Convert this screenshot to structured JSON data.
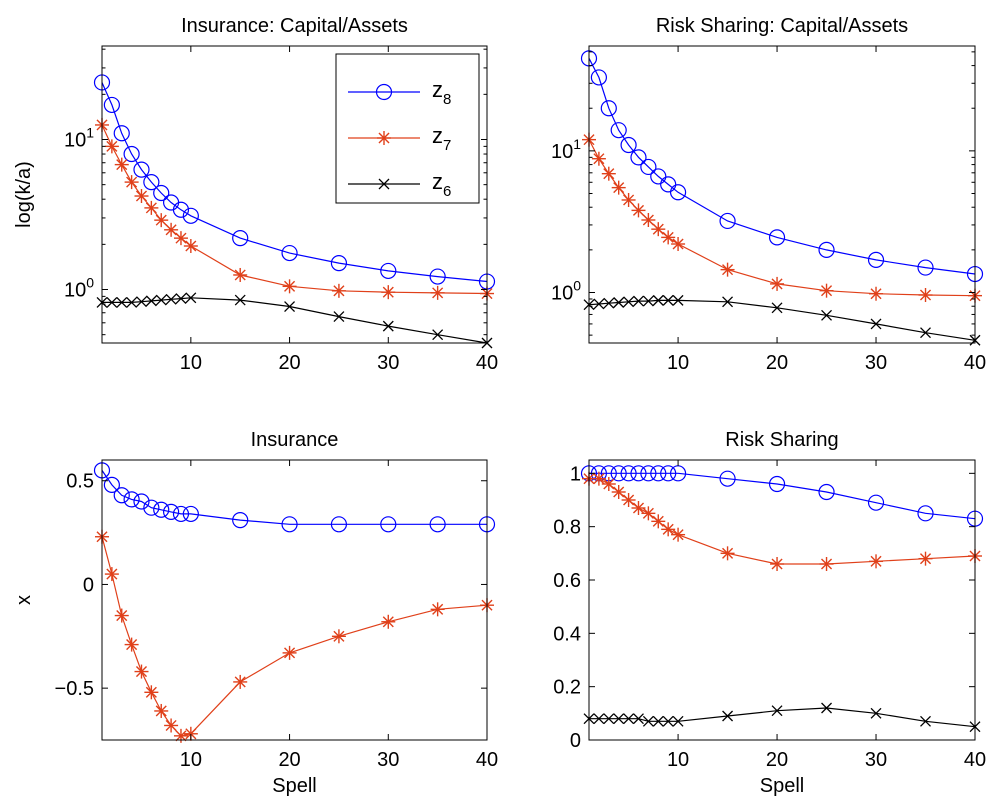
{
  "colors": {
    "z8": "#0000ff",
    "z7": "#e0401a",
    "z6": "#000000"
  },
  "legend": {
    "entries": [
      {
        "series": "z8",
        "base": "z",
        "sub": "8",
        "marker": "circle"
      },
      {
        "series": "z7",
        "base": "z",
        "sub": "7",
        "marker": "asterisk"
      },
      {
        "series": "z6",
        "base": "z",
        "sub": "6",
        "marker": "x"
      }
    ]
  },
  "chart_data": [
    {
      "id": "ins-ka",
      "type": "line",
      "title": "Insurance: Capital/Assets",
      "xlabel": "",
      "ylabel": "log(k/a)",
      "yscale": "log",
      "xlim": [
        1,
        40
      ],
      "ylim": [
        0.44,
        42
      ],
      "xticks": [
        10,
        20,
        30,
        40
      ],
      "yticks": [
        {
          "v": 1,
          "base": "10",
          "exp": "0"
        },
        {
          "v": 10,
          "base": "10",
          "exp": "1"
        }
      ],
      "legend": "top-right",
      "x": [
        1,
        2,
        3,
        4,
        5,
        6,
        7,
        8,
        9,
        10,
        15,
        20,
        25,
        30,
        35,
        40
      ],
      "series": [
        {
          "key": "z8",
          "marker": "circle",
          "values": [
            24,
            17,
            11,
            8,
            6.3,
            5.2,
            4.4,
            3.8,
            3.4,
            3.1,
            2.2,
            1.75,
            1.5,
            1.33,
            1.22,
            1.13
          ]
        },
        {
          "key": "z7",
          "marker": "asterisk",
          "values": [
            12.5,
            9,
            6.8,
            5.2,
            4.2,
            3.5,
            2.9,
            2.5,
            2.2,
            1.95,
            1.25,
            1.05,
            0.98,
            0.96,
            0.95,
            0.94
          ]
        },
        {
          "key": "z6",
          "marker": "x",
          "values": [
            0.82,
            0.82,
            0.82,
            0.82,
            0.83,
            0.84,
            0.85,
            0.86,
            0.87,
            0.88,
            0.85,
            0.77,
            0.66,
            0.57,
            0.5,
            0.44
          ]
        }
      ]
    },
    {
      "id": "rs-ka",
      "type": "line",
      "title": "Risk Sharing: Capital/Assets",
      "xlabel": "",
      "ylabel": "",
      "yscale": "log",
      "xlim": [
        1,
        40
      ],
      "ylim": [
        0.44,
        55
      ],
      "xticks": [
        10,
        20,
        30,
        40
      ],
      "yticks": [
        {
          "v": 1,
          "base": "10",
          "exp": "0"
        },
        {
          "v": 10,
          "base": "10",
          "exp": "1"
        }
      ],
      "x": [
        1,
        2,
        3,
        4,
        5,
        6,
        7,
        8,
        9,
        10,
        15,
        20,
        25,
        30,
        35,
        40
      ],
      "series": [
        {
          "key": "z8",
          "marker": "circle",
          "values": [
            45,
            33,
            20,
            14,
            11,
            9,
            7.7,
            6.6,
            5.8,
            5.1,
            3.2,
            2.45,
            2,
            1.7,
            1.5,
            1.35
          ]
        },
        {
          "key": "z7",
          "marker": "asterisk",
          "values": [
            12,
            8.8,
            6.9,
            5.5,
            4.5,
            3.8,
            3.25,
            2.8,
            2.45,
            2.2,
            1.45,
            1.15,
            1.03,
            0.98,
            0.96,
            0.95
          ]
        },
        {
          "key": "z6",
          "marker": "x",
          "values": [
            0.82,
            0.83,
            0.84,
            0.85,
            0.86,
            0.87,
            0.87,
            0.88,
            0.88,
            0.88,
            0.86,
            0.78,
            0.69,
            0.6,
            0.52,
            0.46
          ]
        }
      ]
    },
    {
      "id": "ins-x",
      "type": "line",
      "title": "Insurance",
      "xlabel": "Spell",
      "ylabel": "x",
      "yscale": "linear",
      "xlim": [
        1,
        40
      ],
      "ylim": [
        -0.75,
        0.6
      ],
      "xticks": [
        10,
        20,
        30,
        40
      ],
      "yticks": [
        {
          "v": 0.5,
          "label": "0.5"
        },
        {
          "v": 0,
          "label": "0"
        },
        {
          "v": -0.5,
          "label": "−0.5"
        }
      ],
      "x": [
        1,
        2,
        3,
        4,
        5,
        6,
        7,
        8,
        9,
        10,
        15,
        20,
        25,
        30,
        35,
        40
      ],
      "series": [
        {
          "key": "z8",
          "marker": "circle",
          "values": [
            0.55,
            0.48,
            0.43,
            0.41,
            0.4,
            0.37,
            0.36,
            0.35,
            0.34,
            0.34,
            0.31,
            0.29,
            0.29,
            0.29,
            0.29,
            0.29
          ]
        },
        {
          "key": "z7",
          "marker": "asterisk",
          "values": [
            0.23,
            0.05,
            -0.15,
            -0.29,
            -0.42,
            -0.52,
            -0.61,
            -0.68,
            -0.73,
            -0.72,
            -0.47,
            -0.33,
            -0.25,
            -0.18,
            -0.12,
            -0.1
          ]
        }
      ]
    },
    {
      "id": "rs-x",
      "type": "line",
      "title": "Risk Sharing",
      "xlabel": "Spell",
      "ylabel": "",
      "yscale": "linear",
      "xlim": [
        1,
        40
      ],
      "ylim": [
        0,
        1.05
      ],
      "xticks": [
        10,
        20,
        30,
        40
      ],
      "yticks": [
        {
          "v": 0,
          "label": "0"
        },
        {
          "v": 0.2,
          "label": "0.2"
        },
        {
          "v": 0.4,
          "label": "0.4"
        },
        {
          "v": 0.6,
          "label": "0.6"
        },
        {
          "v": 0.8,
          "label": "0.8"
        },
        {
          "v": 1,
          "label": "1"
        }
      ],
      "x": [
        1,
        2,
        3,
        4,
        5,
        6,
        7,
        8,
        9,
        10,
        15,
        20,
        25,
        30,
        35,
        40
      ],
      "series": [
        {
          "key": "z8",
          "marker": "circle",
          "values": [
            1,
            1,
            1,
            1,
            1,
            1,
            1,
            1,
            1,
            1,
            0.98,
            0.96,
            0.93,
            0.89,
            0.85,
            0.83
          ]
        },
        {
          "key": "z7",
          "marker": "asterisk",
          "values": [
            0.98,
            0.98,
            0.96,
            0.93,
            0.9,
            0.87,
            0.85,
            0.82,
            0.79,
            0.77,
            0.7,
            0.66,
            0.66,
            0.67,
            0.68,
            0.69
          ]
        },
        {
          "key": "z6",
          "marker": "x",
          "values": [
            0.08,
            0.08,
            0.08,
            0.08,
            0.08,
            0.08,
            0.07,
            0.07,
            0.07,
            0.07,
            0.09,
            0.11,
            0.12,
            0.1,
            0.07,
            0.05
          ]
        }
      ]
    }
  ]
}
